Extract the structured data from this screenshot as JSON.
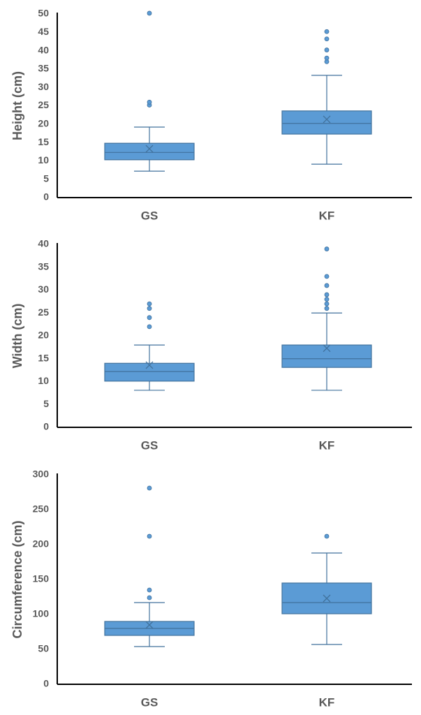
{
  "chart_data": [
    {
      "type": "box",
      "y_label": "Height (cm)",
      "categories": [
        "GS",
        "KF"
      ],
      "color": "#5b9bd5",
      "ylim": [
        0,
        50
      ],
      "yticks": [
        0,
        5,
        10,
        15,
        20,
        25,
        30,
        35,
        40,
        45,
        50
      ],
      "boxes": [
        {
          "min": 7.2,
          "q1": 10.3,
          "median": 12.3,
          "q3": 14.8,
          "max": 19.2,
          "mean": 13.3,
          "outliers": [
            25.2,
            26,
            50.2
          ]
        },
        {
          "min": 9.1,
          "q1": 17.3,
          "median": 20.2,
          "q3": 23.6,
          "max": 33.3,
          "mean": 21.3,
          "outliers": [
            37,
            38,
            40.2,
            43.2,
            45.2
          ]
        }
      ]
    },
    {
      "type": "box",
      "y_label": "Width (cm)",
      "categories": [
        "GS",
        "KF"
      ],
      "color": "#5b9bd5",
      "ylim": [
        0,
        40
      ],
      "yticks": [
        0,
        5,
        10,
        15,
        20,
        25,
        30,
        35,
        40
      ],
      "boxes": [
        {
          "min": 8.1,
          "q1": 10.1,
          "median": 12.2,
          "q3": 14,
          "max": 18,
          "mean": 13.6,
          "outliers": [
            22,
            24,
            26,
            27
          ]
        },
        {
          "min": 8.1,
          "q1": 13.1,
          "median": 15,
          "q3": 18,
          "max": 25,
          "mean": 17.3,
          "outliers": [
            26,
            27,
            28,
            29,
            31,
            33,
            39
          ]
        }
      ]
    },
    {
      "type": "box",
      "y_label": "Circumference (cm)",
      "categories": [
        "GS",
        "KF"
      ],
      "color": "#5b9bd5",
      "ylim": [
        0,
        300
      ],
      "yticks": [
        0,
        50,
        100,
        150,
        200,
        250,
        300
      ],
      "boxes": [
        {
          "min": 54,
          "q1": 70,
          "median": 80,
          "q3": 90,
          "max": 117,
          "mean": 85,
          "outliers": [
            124,
            135,
            212,
            281
          ]
        },
        {
          "min": 57,
          "q1": 101,
          "median": 117,
          "q3": 145,
          "max": 188,
          "mean": 123,
          "outliers": [
            212
          ]
        }
      ]
    }
  ]
}
